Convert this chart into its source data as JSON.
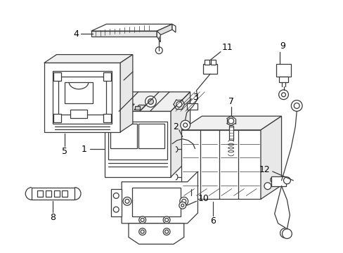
{
  "background_color": "#ffffff",
  "line_color": "#3a3a3a",
  "text_color": "#000000",
  "fig_width": 4.89,
  "fig_height": 3.6,
  "dpi": 100
}
